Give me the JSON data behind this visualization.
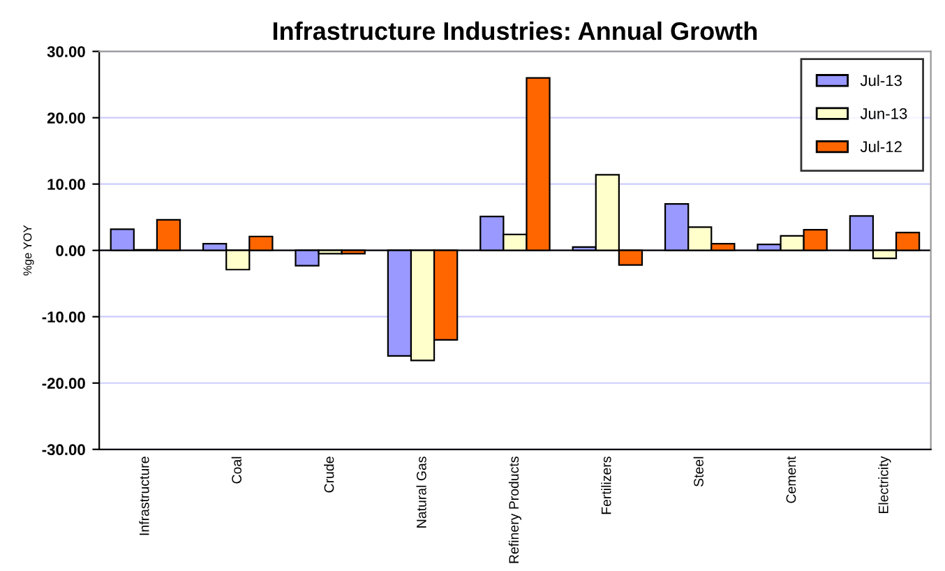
{
  "chart_data": {
    "type": "bar",
    "title": "Infrastructure Industries: Annual Growth",
    "ylabel": "%ge YOY",
    "categories": [
      "Infrastructure",
      "Coal",
      "Crude",
      "Natural Gas",
      "Refinery Products",
      "Fertilizers",
      "Steel",
      "Cement",
      "Electricity"
    ],
    "series": [
      {
        "name": "Jul-13",
        "color": "#9999ff",
        "values": [
          3.2,
          1.0,
          -2.3,
          -15.9,
          5.1,
          0.5,
          7.0,
          0.9,
          5.2
        ]
      },
      {
        "name": "Jun-13",
        "color": "#ffffcc",
        "values": [
          0.1,
          -2.9,
          -0.5,
          -16.6,
          2.4,
          11.4,
          3.5,
          2.2,
          -1.2
        ]
      },
      {
        "name": "Jul-12",
        "color": "#ff6600",
        "values": [
          4.6,
          2.1,
          -0.5,
          -13.5,
          26.0,
          -2.2,
          1.0,
          3.1,
          2.7
        ]
      }
    ],
    "ylim": [
      -30,
      30
    ],
    "yticks": [
      {
        "value": -30,
        "label": "-30.00"
      },
      {
        "value": -20,
        "label": "-20.00"
      },
      {
        "value": -10,
        "label": "-10.00"
      },
      {
        "value": 0,
        "label": "0.00"
      },
      {
        "value": 10,
        "label": "10.00"
      },
      {
        "value": 20,
        "label": "20.00"
      },
      {
        "value": 30,
        "label": "30.00"
      }
    ],
    "grid": "y",
    "legend": "top right"
  }
}
